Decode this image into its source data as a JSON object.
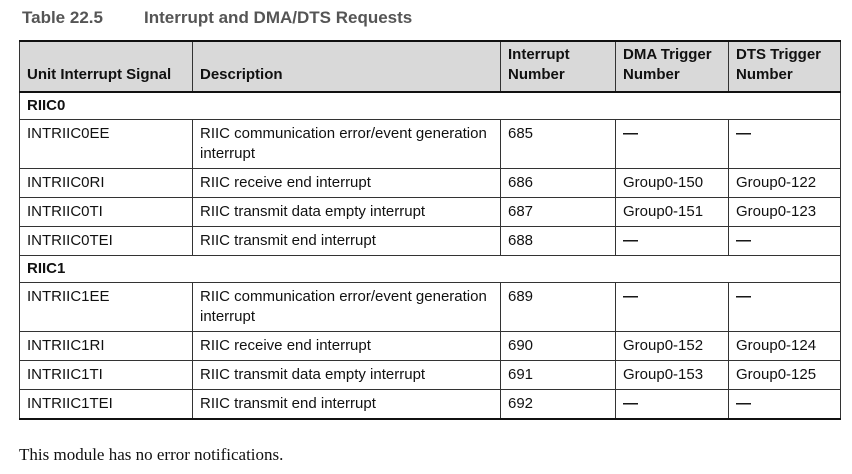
{
  "caption": {
    "number": "Table 22.5",
    "title": "Interrupt and DMA/DTS Requests"
  },
  "headers": {
    "signal": "Unit Interrupt Signal",
    "description": "Description",
    "interrupt": "Interrupt Number",
    "dma": "DMA Trigger Number",
    "dts": "DTS Trigger Number"
  },
  "groups": [
    {
      "name": "RIIC0",
      "rows": [
        {
          "signal": "INTRIIC0EE",
          "description": "RIIC communication error/event generation interrupt",
          "interrupt": "685",
          "dma": "—",
          "dts": "—"
        },
        {
          "signal": "INTRIIC0RI",
          "description": "RIIC receive end interrupt",
          "interrupt": "686",
          "dma": "Group0-150",
          "dts": "Group0-122"
        },
        {
          "signal": "INTRIIC0TI",
          "description": "RIIC transmit data empty interrupt",
          "interrupt": "687",
          "dma": "Group0-151",
          "dts": "Group0-123"
        },
        {
          "signal": "INTRIIC0TEI",
          "description": "RIIC transmit end interrupt",
          "interrupt": "688",
          "dma": "—",
          "dts": "—"
        }
      ]
    },
    {
      "name": "RIIC1",
      "rows": [
        {
          "signal": "INTRIIC1EE",
          "description": "RIIC communication error/event generation interrupt",
          "interrupt": "689",
          "dma": "—",
          "dts": "—"
        },
        {
          "signal": "INTRIIC1RI",
          "description": "RIIC receive end interrupt",
          "interrupt": "690",
          "dma": "Group0-152",
          "dts": "Group0-124"
        },
        {
          "signal": "INTRIIC1TI",
          "description": "RIIC transmit data empty interrupt",
          "interrupt": "691",
          "dma": "Group0-153",
          "dts": "Group0-125"
        },
        {
          "signal": "INTRIIC1TEI",
          "description": "RIIC transmit end interrupt",
          "interrupt": "692",
          "dma": "—",
          "dts": "—"
        }
      ]
    }
  ],
  "note": "This module has no error notifications."
}
